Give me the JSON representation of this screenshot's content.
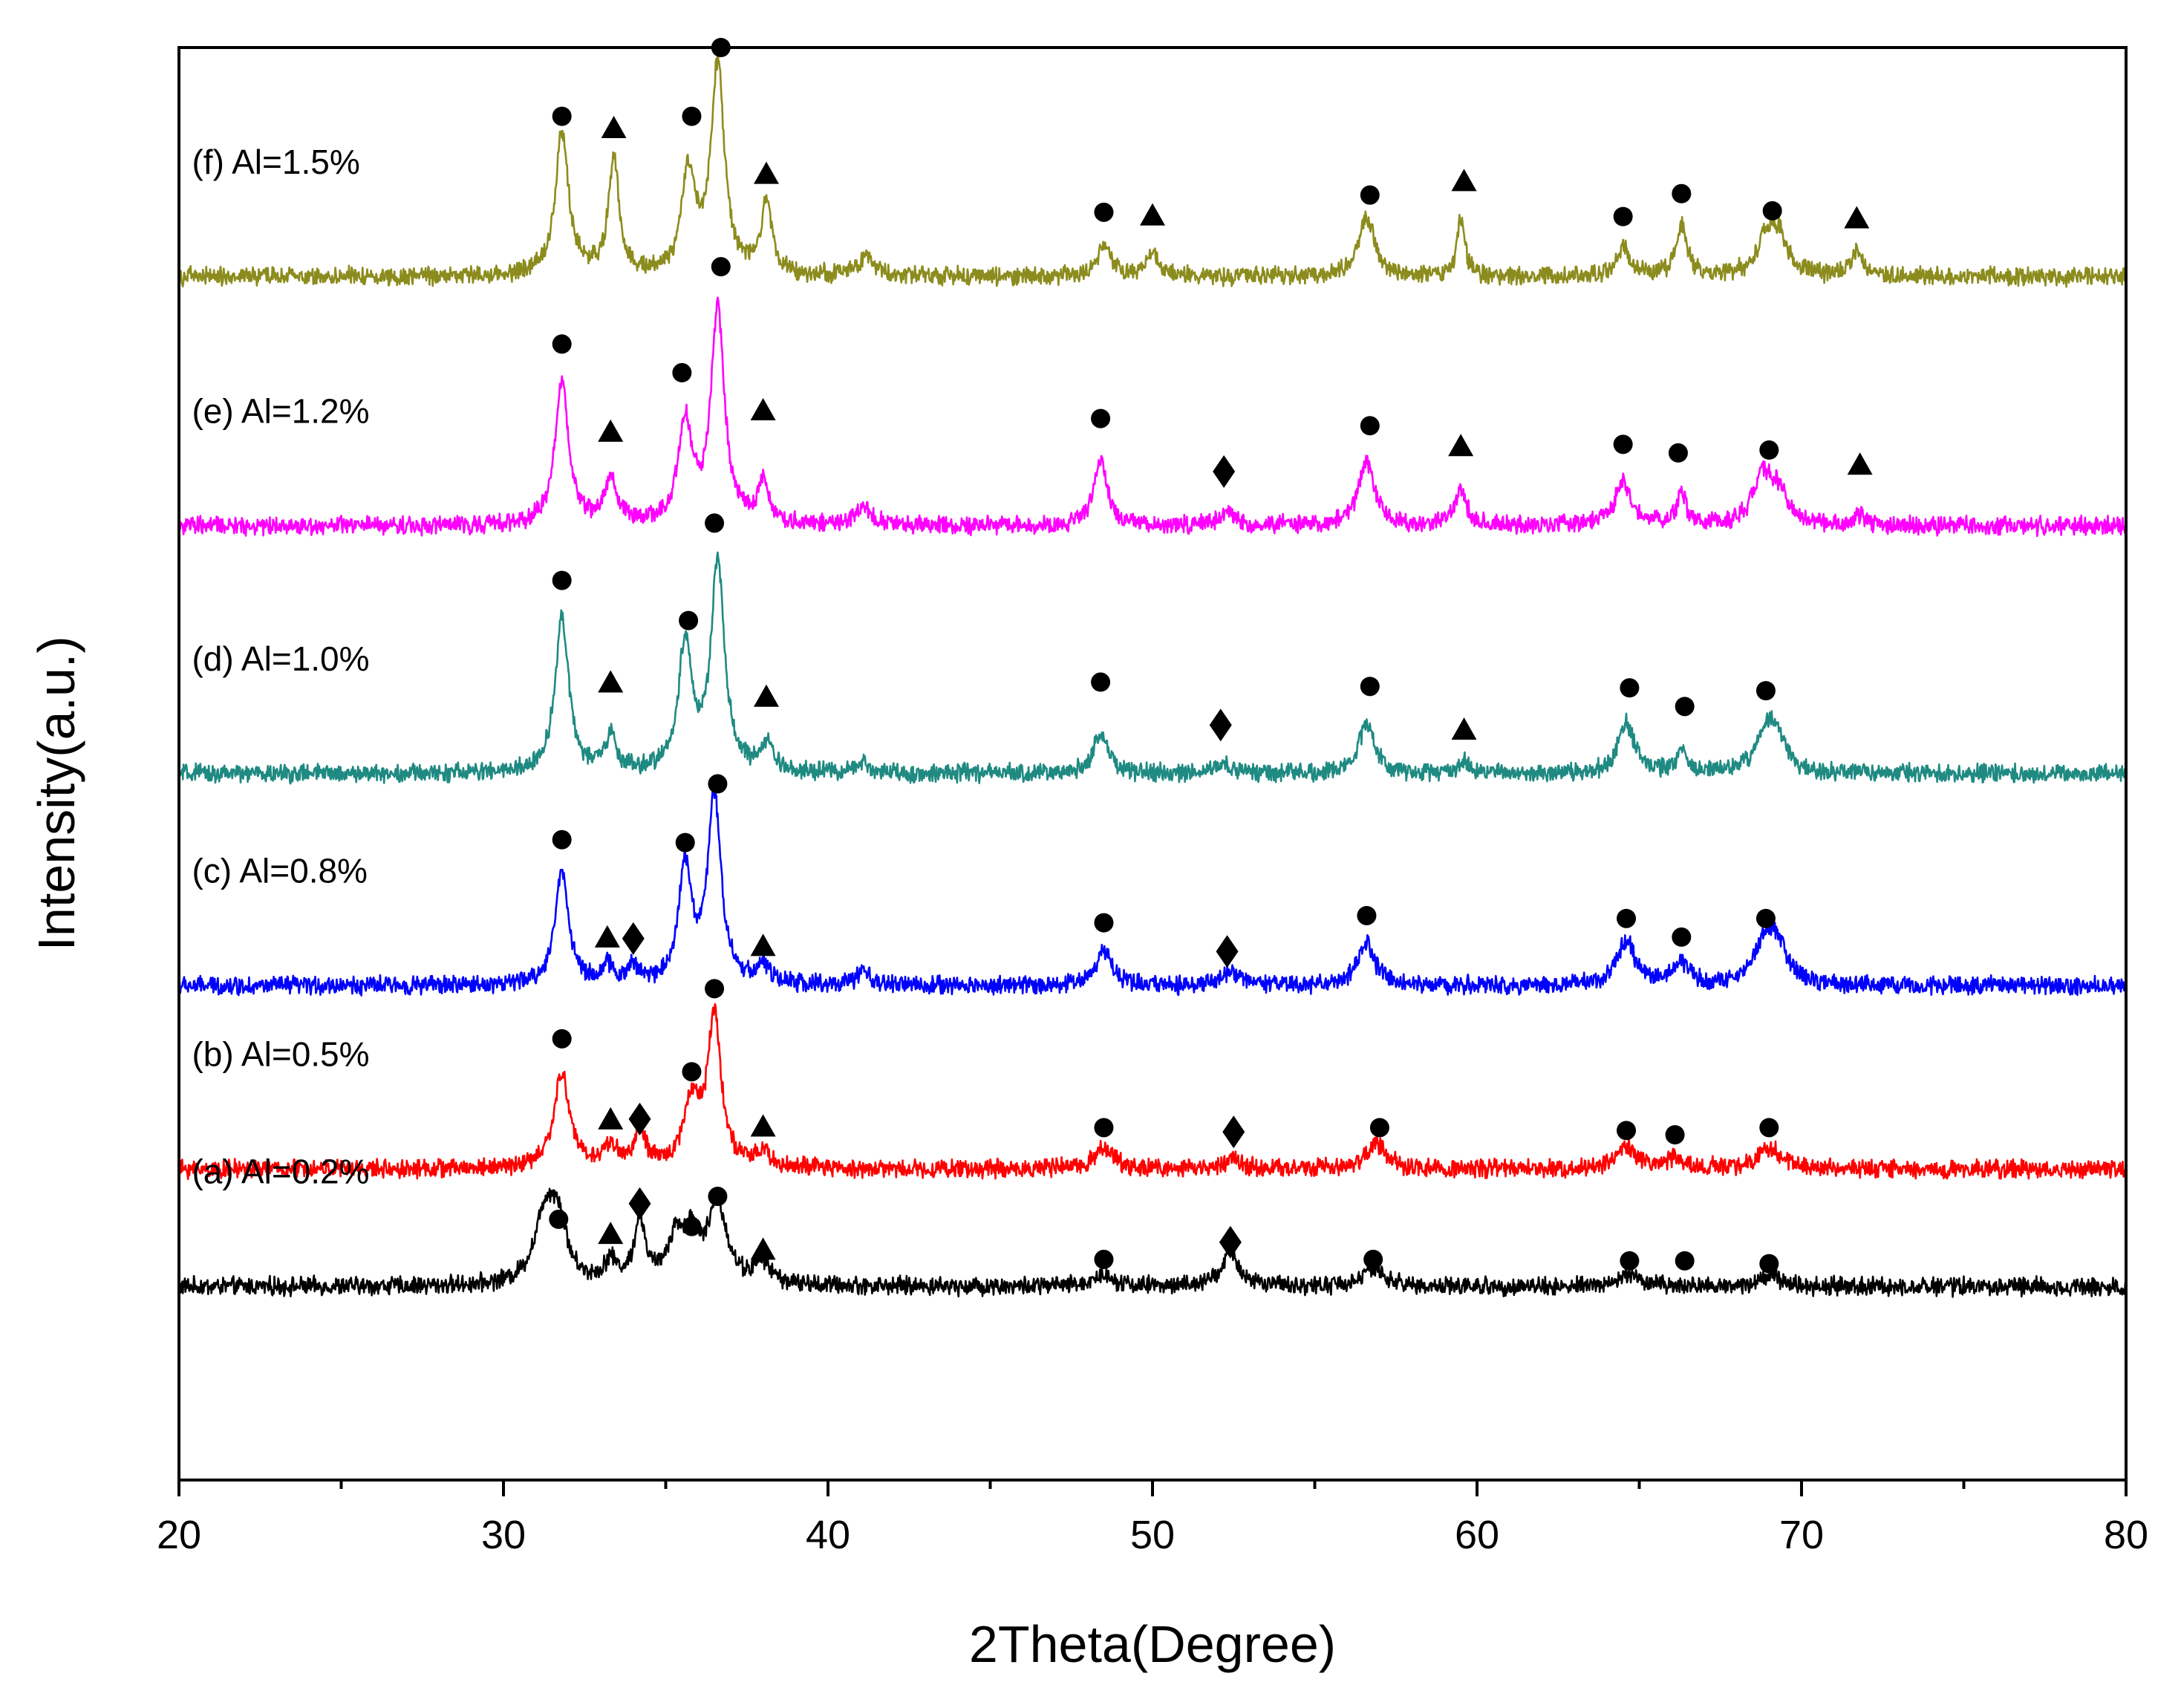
{
  "chart_data": {
    "type": "line",
    "xlabel": "2Theta(Degree)",
    "ylabel": "Intensity(a.u.)",
    "xlim": [
      20,
      80
    ],
    "xticks": [
      20,
      30,
      40,
      50,
      60,
      70,
      80
    ],
    "x_minor_step": 5,
    "ylim": [
      0,
      100
    ],
    "grid": false,
    "legend": "inline-left",
    "noise_amplitude": 0.5,
    "series": [
      {
        "name": "(a) Al=0.2%",
        "color": "#000000",
        "baseline": 13.5,
        "peaks": [
          {
            "x": 31.3,
            "h": 5.0,
            "w": 0.4
          },
          {
            "x": 31.7,
            "h": 3.5,
            "w": 0.3
          },
          {
            "x": 33.3,
            "h": 1.5,
            "w": 0.25
          },
          {
            "x": 34.2,
            "h": 4.5,
            "w": 0.2
          },
          {
            "x": 35.3,
            "h": 3.0,
            "w": 0.3
          },
          {
            "x": 35.8,
            "h": 3.0,
            "w": 0.3
          },
          {
            "x": 36.6,
            "h": 5.5,
            "w": 0.35
          },
          {
            "x": 38.0,
            "h": 1.5,
            "w": 0.3
          },
          {
            "x": 48.5,
            "h": 0.8,
            "w": 0.4
          },
          {
            "x": 52.4,
            "h": 2.5,
            "w": 0.3
          },
          {
            "x": 56.8,
            "h": 1.2,
            "w": 0.4
          },
          {
            "x": 64.7,
            "h": 0.8,
            "w": 0.4
          },
          {
            "x": 69.0,
            "h": 0.8,
            "w": 0.4
          }
        ],
        "markers": [
          {
            "x": 31.7,
            "y": 18.2,
            "shape": "circle"
          },
          {
            "x": 33.3,
            "y": 17.1,
            "shape": "triangle"
          },
          {
            "x": 34.2,
            "y": 19.3,
            "shape": "diamond"
          },
          {
            "x": 35.8,
            "y": 17.7,
            "shape": "circle"
          },
          {
            "x": 36.6,
            "y": 19.8,
            "shape": "circle"
          },
          {
            "x": 38.0,
            "y": 16.0,
            "shape": "triangle"
          },
          {
            "x": 48.5,
            "y": 15.4,
            "shape": "circle"
          },
          {
            "x": 52.4,
            "y": 16.6,
            "shape": "diamond"
          },
          {
            "x": 56.8,
            "y": 15.4,
            "shape": "circle"
          },
          {
            "x": 64.7,
            "y": 15.3,
            "shape": "circle"
          },
          {
            "x": 66.4,
            "y": 15.3,
            "shape": "circle"
          },
          {
            "x": 69.0,
            "y": 15.1,
            "shape": "circle"
          }
        ]
      },
      {
        "name": "(b) Al=0.5%",
        "color": "#ff0000",
        "baseline": 21.7,
        "peaks": [
          {
            "x": 31.8,
            "h": 6.5,
            "w": 0.3
          },
          {
            "x": 33.3,
            "h": 1.5,
            "w": 0.25
          },
          {
            "x": 34.2,
            "h": 2.5,
            "w": 0.2
          },
          {
            "x": 35.8,
            "h": 4.5,
            "w": 0.3
          },
          {
            "x": 36.5,
            "h": 10.5,
            "w": 0.25
          },
          {
            "x": 38.0,
            "h": 1.0,
            "w": 0.25
          },
          {
            "x": 48.5,
            "h": 1.5,
            "w": 0.35
          },
          {
            "x": 52.5,
            "h": 0.8,
            "w": 0.3
          },
          {
            "x": 56.9,
            "h": 1.8,
            "w": 0.35
          },
          {
            "x": 64.6,
            "h": 1.5,
            "w": 0.35
          },
          {
            "x": 66.1,
            "h": 0.8,
            "w": 0.3
          },
          {
            "x": 69.0,
            "h": 1.5,
            "w": 0.45
          }
        ],
        "markers": [
          {
            "x": 31.8,
            "y": 30.8,
            "shape": "circle"
          },
          {
            "x": 33.3,
            "y": 25.1,
            "shape": "triangle"
          },
          {
            "x": 34.2,
            "y": 25.2,
            "shape": "diamond"
          },
          {
            "x": 35.8,
            "y": 28.5,
            "shape": "circle"
          },
          {
            "x": 36.5,
            "y": 34.3,
            "shape": "circle"
          },
          {
            "x": 38.0,
            "y": 24.6,
            "shape": "triangle"
          },
          {
            "x": 48.5,
            "y": 24.6,
            "shape": "circle"
          },
          {
            "x": 52.5,
            "y": 24.3,
            "shape": "diamond"
          },
          {
            "x": 57.0,
            "y": 24.6,
            "shape": "circle"
          },
          {
            "x": 64.6,
            "y": 24.4,
            "shape": "circle"
          },
          {
            "x": 66.1,
            "y": 24.1,
            "shape": "circle"
          },
          {
            "x": 69.0,
            "y": 24.6,
            "shape": "circle"
          }
        ]
      },
      {
        "name": "(c) Al=0.8%",
        "color": "#0000ff",
        "baseline": 34.5,
        "peaks": [
          {
            "x": 31.8,
            "h": 8.0,
            "w": 0.25
          },
          {
            "x": 33.2,
            "h": 1.2,
            "w": 0.2
          },
          {
            "x": 34.0,
            "h": 1.2,
            "w": 0.2
          },
          {
            "x": 35.6,
            "h": 8.0,
            "w": 0.25
          },
          {
            "x": 36.5,
            "h": 13.0,
            "w": 0.25
          },
          {
            "x": 38.0,
            "h": 1.2,
            "w": 0.25
          },
          {
            "x": 41.1,
            "h": 1.0,
            "w": 0.2
          },
          {
            "x": 48.5,
            "h": 2.5,
            "w": 0.3
          },
          {
            "x": 52.4,
            "h": 1.0,
            "w": 0.3
          },
          {
            "x": 56.6,
            "h": 3.0,
            "w": 0.3
          },
          {
            "x": 64.6,
            "h": 3.0,
            "w": 0.35
          },
          {
            "x": 66.3,
            "h": 1.5,
            "w": 0.3
          },
          {
            "x": 68.9,
            "h": 3.0,
            "w": 0.4
          },
          {
            "x": 69.3,
            "h": 2.0,
            "w": 0.35
          }
        ],
        "markers": [
          {
            "x": 31.8,
            "y": 44.7,
            "shape": "circle"
          },
          {
            "x": 33.2,
            "y": 37.8,
            "shape": "triangle"
          },
          {
            "x": 34.0,
            "y": 37.8,
            "shape": "diamond"
          },
          {
            "x": 35.6,
            "y": 44.5,
            "shape": "circle"
          },
          {
            "x": 36.6,
            "y": 48.6,
            "shape": "circle"
          },
          {
            "x": 38.0,
            "y": 37.2,
            "shape": "triangle"
          },
          {
            "x": 48.5,
            "y": 38.9,
            "shape": "circle"
          },
          {
            "x": 52.3,
            "y": 36.9,
            "shape": "diamond"
          },
          {
            "x": 56.6,
            "y": 39.4,
            "shape": "circle"
          },
          {
            "x": 64.6,
            "y": 39.2,
            "shape": "circle"
          },
          {
            "x": 66.3,
            "y": 37.9,
            "shape": "circle"
          },
          {
            "x": 68.9,
            "y": 39.2,
            "shape": "circle"
          }
        ]
      },
      {
        "name": "(d) Al=1.0%",
        "color": "#1f8a82",
        "baseline": 49.3,
        "peaks": [
          {
            "x": 31.8,
            "h": 11.0,
            "w": 0.25
          },
          {
            "x": 33.3,
            "h": 2.5,
            "w": 0.2
          },
          {
            "x": 35.6,
            "h": 9.0,
            "w": 0.25
          },
          {
            "x": 36.6,
            "h": 14.5,
            "w": 0.25
          },
          {
            "x": 38.1,
            "h": 2.0,
            "w": 0.2
          },
          {
            "x": 41.1,
            "h": 0.8,
            "w": 0.2
          },
          {
            "x": 48.4,
            "h": 3.0,
            "w": 0.25
          },
          {
            "x": 52.2,
            "h": 0.8,
            "w": 0.25
          },
          {
            "x": 56.6,
            "h": 3.5,
            "w": 0.3
          },
          {
            "x": 59.6,
            "h": 0.8,
            "w": 0.2
          },
          {
            "x": 64.6,
            "h": 3.5,
            "w": 0.3
          },
          {
            "x": 66.3,
            "h": 1.5,
            "w": 0.2
          },
          {
            "x": 68.9,
            "h": 3.0,
            "w": 0.35
          },
          {
            "x": 69.3,
            "h": 2.0,
            "w": 0.3
          }
        ],
        "markers": [
          {
            "x": 31.8,
            "y": 62.8,
            "shape": "circle"
          },
          {
            "x": 33.3,
            "y": 55.6,
            "shape": "triangle"
          },
          {
            "x": 35.7,
            "y": 60.0,
            "shape": "circle"
          },
          {
            "x": 36.5,
            "y": 66.8,
            "shape": "circle"
          },
          {
            "x": 38.1,
            "y": 54.6,
            "shape": "triangle"
          },
          {
            "x": 48.4,
            "y": 55.7,
            "shape": "circle"
          },
          {
            "x": 52.1,
            "y": 52.7,
            "shape": "diamond"
          },
          {
            "x": 56.7,
            "y": 55.4,
            "shape": "circle"
          },
          {
            "x": 59.6,
            "y": 52.3,
            "shape": "triangle"
          },
          {
            "x": 64.7,
            "y": 55.3,
            "shape": "circle"
          },
          {
            "x": 66.4,
            "y": 54.0,
            "shape": "circle"
          },
          {
            "x": 68.9,
            "y": 55.1,
            "shape": "circle"
          }
        ]
      },
      {
        "name": "(e) Al=1.2%",
        "color": "#ff00ff",
        "baseline": 66.6,
        "peaks": [
          {
            "x": 31.8,
            "h": 10.0,
            "w": 0.25
          },
          {
            "x": 33.3,
            "h": 3.0,
            "w": 0.25
          },
          {
            "x": 35.6,
            "h": 7.0,
            "w": 0.25
          },
          {
            "x": 36.6,
            "h": 15.0,
            "w": 0.25
          },
          {
            "x": 38.0,
            "h": 3.0,
            "w": 0.2
          },
          {
            "x": 41.1,
            "h": 1.2,
            "w": 0.3
          },
          {
            "x": 48.4,
            "h": 4.5,
            "w": 0.25
          },
          {
            "x": 52.3,
            "h": 1.0,
            "w": 0.25
          },
          {
            "x": 56.6,
            "h": 4.5,
            "w": 0.3
          },
          {
            "x": 59.5,
            "h": 2.5,
            "w": 0.2
          },
          {
            "x": 64.5,
            "h": 3.0,
            "w": 0.3
          },
          {
            "x": 66.3,
            "h": 2.0,
            "w": 0.2
          },
          {
            "x": 68.8,
            "h": 3.5,
            "w": 0.35
          },
          {
            "x": 69.3,
            "h": 2.0,
            "w": 0.3
          },
          {
            "x": 71.8,
            "h": 0.8,
            "w": 0.2
          }
        ],
        "markers": [
          {
            "x": 31.8,
            "y": 79.3,
            "shape": "circle"
          },
          {
            "x": 33.3,
            "y": 73.1,
            "shape": "triangle"
          },
          {
            "x": 35.5,
            "y": 77.3,
            "shape": "circle"
          },
          {
            "x": 36.7,
            "y": 84.7,
            "shape": "circle"
          },
          {
            "x": 38.0,
            "y": 74.6,
            "shape": "triangle"
          },
          {
            "x": 48.4,
            "y": 74.1,
            "shape": "circle"
          },
          {
            "x": 52.2,
            "y": 70.4,
            "shape": "diamond"
          },
          {
            "x": 56.7,
            "y": 73.6,
            "shape": "circle"
          },
          {
            "x": 59.5,
            "y": 72.1,
            "shape": "triangle"
          },
          {
            "x": 64.5,
            "y": 72.3,
            "shape": "circle"
          },
          {
            "x": 66.2,
            "y": 71.7,
            "shape": "circle"
          },
          {
            "x": 69.0,
            "y": 71.9,
            "shape": "circle"
          },
          {
            "x": 71.8,
            "y": 70.8,
            "shape": "triangle"
          }
        ]
      },
      {
        "name": "(f) Al=1.5%",
        "color": "#8c8c1e",
        "baseline": 84.0,
        "peaks": [
          {
            "x": 31.8,
            "h": 10.0,
            "w": 0.25
          },
          {
            "x": 33.4,
            "h": 8.0,
            "w": 0.2
          },
          {
            "x": 35.7,
            "h": 7.0,
            "w": 0.25
          },
          {
            "x": 36.6,
            "h": 14.5,
            "w": 0.25
          },
          {
            "x": 38.1,
            "h": 5.0,
            "w": 0.2
          },
          {
            "x": 41.2,
            "h": 1.5,
            "w": 0.25
          },
          {
            "x": 48.5,
            "h": 2.0,
            "w": 0.25
          },
          {
            "x": 50.0,
            "h": 1.8,
            "w": 0.2
          },
          {
            "x": 56.6,
            "h": 4.0,
            "w": 0.3
          },
          {
            "x": 59.5,
            "h": 4.0,
            "w": 0.15
          },
          {
            "x": 64.5,
            "h": 2.0,
            "w": 0.25
          },
          {
            "x": 66.3,
            "h": 3.5,
            "w": 0.2
          },
          {
            "x": 68.9,
            "h": 2.5,
            "w": 0.35
          },
          {
            "x": 69.3,
            "h": 2.5,
            "w": 0.3
          },
          {
            "x": 71.7,
            "h": 1.8,
            "w": 0.2
          }
        ],
        "markers": [
          {
            "x": 31.8,
            "y": 95.2,
            "shape": "circle"
          },
          {
            "x": 33.4,
            "y": 94.3,
            "shape": "triangle"
          },
          {
            "x": 35.8,
            "y": 95.2,
            "shape": "circle"
          },
          {
            "x": 36.7,
            "y": 100.0,
            "shape": "circle"
          },
          {
            "x": 38.1,
            "y": 91.1,
            "shape": "triangle"
          },
          {
            "x": 48.5,
            "y": 88.5,
            "shape": "circle"
          },
          {
            "x": 50.0,
            "y": 88.2,
            "shape": "triangle"
          },
          {
            "x": 56.7,
            "y": 89.7,
            "shape": "circle"
          },
          {
            "x": 59.6,
            "y": 90.6,
            "shape": "triangle"
          },
          {
            "x": 64.5,
            "y": 88.2,
            "shape": "circle"
          },
          {
            "x": 66.3,
            "y": 89.8,
            "shape": "circle"
          },
          {
            "x": 69.1,
            "y": 88.6,
            "shape": "circle"
          },
          {
            "x": 71.7,
            "y": 88.0,
            "shape": "triangle"
          }
        ]
      }
    ]
  }
}
